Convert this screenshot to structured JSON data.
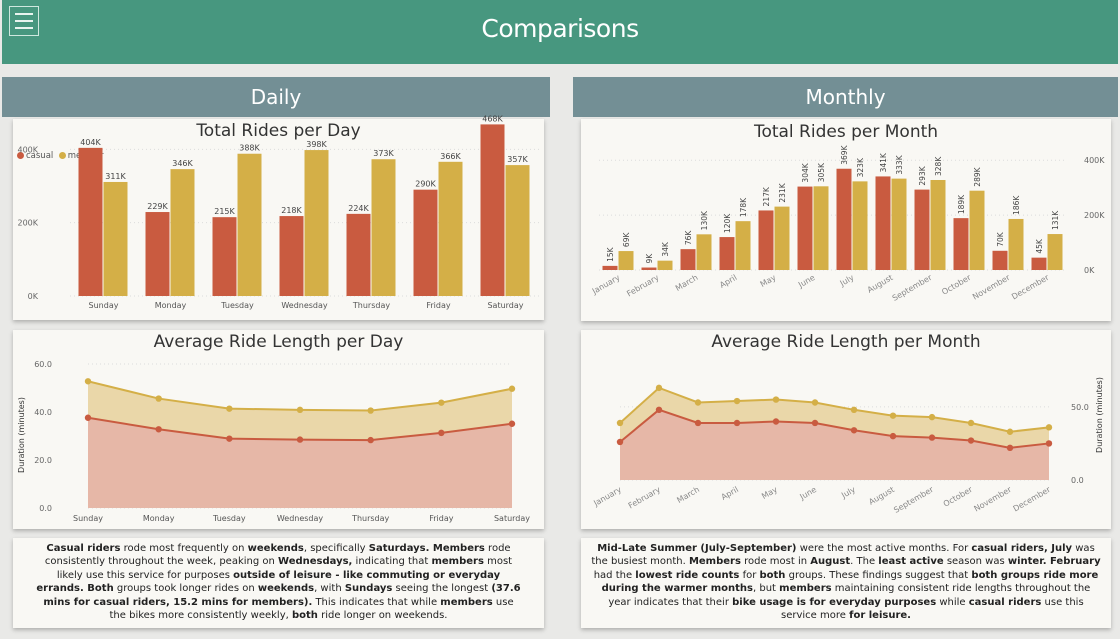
{
  "header": {
    "title": "Comparisons",
    "menu_icon": "hamburger-menu-icon"
  },
  "sections": {
    "daily": "Daily",
    "monthly": "Monthly"
  },
  "colors": {
    "casual": "#c95b40",
    "member": "#d4af47",
    "casual_fill": "#e6b7a7",
    "member_fill": "#ead7a9"
  },
  "chart_data": [
    {
      "id": "rides_per_day",
      "type": "bar",
      "title": "Total Rides per Day",
      "categories": [
        "Sunday",
        "Monday",
        "Tuesday",
        "Wednesday",
        "Thursday",
        "Friday",
        "Saturday"
      ],
      "series": [
        {
          "name": "casual",
          "values": [
            404000,
            229000,
            215000,
            218000,
            224000,
            290000,
            468000
          ],
          "labels": [
            "404K",
            "229K",
            "215K",
            "218K",
            "224K",
            "290K",
            "468K"
          ]
        },
        {
          "name": "member",
          "values": [
            311000,
            346000,
            388000,
            398000,
            373000,
            366000,
            357000
          ],
          "labels": [
            "311K",
            "346K",
            "388K",
            "398K",
            "373K",
            "366K",
            "357K"
          ]
        }
      ],
      "yticks": [
        "0K",
        "200K",
        "400K"
      ],
      "ylim": [
        0,
        480000
      ],
      "legend": "top-left"
    },
    {
      "id": "rides_per_month",
      "type": "bar",
      "title": "Total Rides per Month",
      "categories": [
        "January",
        "February",
        "March",
        "April",
        "May",
        "June",
        "July",
        "August",
        "September",
        "October",
        "November",
        "December"
      ],
      "series": [
        {
          "name": "casual",
          "values": [
            15000,
            9000,
            76000,
            120000,
            217000,
            304000,
            369000,
            341000,
            293000,
            189000,
            70000,
            45000
          ],
          "labels": [
            "15K",
            "9K",
            "76K",
            "120K",
            "217K",
            "304K",
            "369K",
            "341K",
            "293K",
            "189K",
            "70K",
            "45K"
          ]
        },
        {
          "name": "member",
          "values": [
            69000,
            34000,
            130000,
            178000,
            231000,
            305000,
            323000,
            333000,
            328000,
            289000,
            186000,
            131000
          ],
          "labels": [
            "69K",
            "34K",
            "130K",
            "178K",
            "231K",
            "305K",
            "323K",
            "333K",
            "328K",
            "289K",
            "186K",
            "131K"
          ]
        }
      ],
      "yticks": [
        "0K",
        "200K",
        "400K"
      ],
      "ylim": [
        0,
        430000
      ]
    },
    {
      "id": "avg_length_per_day",
      "type": "area",
      "title": "Average Ride Length per Day",
      "ylabel": "Duration (minutes)",
      "categories": [
        "Sunday",
        "Monday",
        "Tuesday",
        "Wednesday",
        "Thursday",
        "Friday",
        "Saturday"
      ],
      "series": [
        {
          "name": "casual",
          "values": [
            37.6,
            32.8,
            28.9,
            28.5,
            28.3,
            31.3,
            35.1
          ]
        },
        {
          "name": "member",
          "values": [
            52.8,
            45.6,
            41.4,
            40.9,
            40.6,
            43.9,
            49.7
          ]
        }
      ],
      "yticks": [
        "0.0",
        "20.0",
        "40.0",
        "60.0"
      ],
      "ylim": [
        0,
        60
      ]
    },
    {
      "id": "avg_length_per_month",
      "type": "area",
      "title": "Average Ride Length per Month",
      "ylabel": "Duration (minutes)",
      "categories": [
        "January",
        "February",
        "March",
        "April",
        "May",
        "June",
        "July",
        "August",
        "September",
        "October",
        "November",
        "December"
      ],
      "series": [
        {
          "name": "casual",
          "values": [
            26,
            48,
            39,
            39,
            40,
            39,
            34,
            30,
            29,
            27,
            22,
            25
          ]
        },
        {
          "name": "member",
          "values": [
            39,
            63,
            53,
            54,
            55,
            53,
            48,
            44,
            43,
            39,
            33,
            36
          ]
        }
      ],
      "yticks": [
        "0.0",
        "50.0"
      ],
      "ylim": [
        0,
        80
      ]
    }
  ],
  "notes": {
    "daily": [
      [
        "b",
        "Casual riders"
      ],
      [
        "t",
        " rode most frequently on "
      ],
      [
        "b",
        "weekends"
      ],
      [
        "t",
        ", specifically "
      ],
      [
        "b",
        "Saturdays. Members"
      ],
      [
        "t",
        " rode consistently throughout the week, peaking on "
      ],
      [
        "b",
        "Wednesdays,"
      ],
      [
        "t",
        " indicating that "
      ],
      [
        "b",
        "members"
      ],
      [
        "t",
        " most likely use this service for purposes "
      ],
      [
        "b",
        "outside of leisure - like commuting or everyday errands. Both"
      ],
      [
        "t",
        " groups took longer rides on "
      ],
      [
        "b",
        "weekends"
      ],
      [
        "t",
        ", with "
      ],
      [
        "b",
        "Sundays"
      ],
      [
        "t",
        " seeing the longest "
      ],
      [
        "b",
        "(37.6 mins for casual riders, 15.2 mins for members)."
      ],
      [
        "t",
        "  This indicates that while "
      ],
      [
        "b",
        "members"
      ],
      [
        "t",
        " use the bikes more consistently weekly, "
      ],
      [
        "b",
        "both"
      ],
      [
        "t",
        " ride longer on weekends."
      ]
    ],
    "monthly": [
      [
        "b",
        "Mid-Late Summer (July-September)"
      ],
      [
        "t",
        " were the most active months. For "
      ],
      [
        "b",
        "casual riders, July"
      ],
      [
        "t",
        " was the busiest month. "
      ],
      [
        "b",
        "Members"
      ],
      [
        "t",
        " rode most in "
      ],
      [
        "b",
        "August"
      ],
      [
        "t",
        ". The "
      ],
      [
        "b",
        "least active"
      ],
      [
        "t",
        " season was "
      ],
      [
        "b",
        "winter. February"
      ],
      [
        "t",
        " had the "
      ],
      [
        "b",
        "lowest ride counts"
      ],
      [
        "t",
        " for "
      ],
      [
        "b",
        "both"
      ],
      [
        "t",
        " groups. These findings suggest that "
      ],
      [
        "b",
        "both groups ride more during the warmer months"
      ],
      [
        "t",
        ", but "
      ],
      [
        "b",
        "members"
      ],
      [
        "t",
        " maintaining consistent ride lengths throughout the year indicates that their "
      ],
      [
        "b",
        "bike usage is for everyday purposes"
      ],
      [
        "t",
        " while "
      ],
      [
        "b",
        "casual riders"
      ],
      [
        "t",
        " use this service more "
      ],
      [
        "b",
        "for leisure."
      ]
    ]
  }
}
